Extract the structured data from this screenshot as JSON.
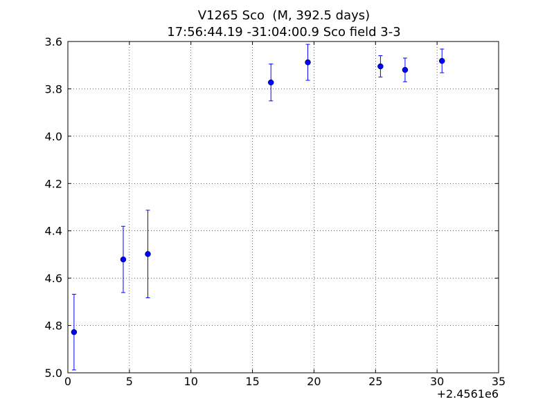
{
  "chart_data": {
    "type": "scatter",
    "title": "V1265 Sco  (M, 392.5 days)",
    "subtitle": "17:56:44.19 -31:04:00.9 Sco field 3-3",
    "x_offset_label": "+2.4561e6",
    "x": [
      0.5,
      4.5,
      6.5,
      16.5,
      19.5,
      25.4,
      27.4,
      30.4
    ],
    "values": [
      4.828,
      4.521,
      4.498,
      3.773,
      3.688,
      3.705,
      3.72,
      3.682
    ],
    "errors": [
      0.16,
      0.14,
      0.185,
      0.078,
      0.076,
      0.045,
      0.05,
      0.05
    ],
    "color": "#0000ff",
    "xlim": [
      0,
      35
    ],
    "xticks": [
      0,
      5,
      10,
      15,
      20,
      25,
      30,
      35
    ],
    "ylim": [
      5.0,
      3.6
    ],
    "yticks": [
      3.6,
      3.8,
      {
        "value": 4,
        "label": "4.0"
      },
      4.2,
      4.4,
      4.6,
      4.8,
      {
        "value": 5,
        "label": "5.0"
      }
    ],
    "grid": true
  }
}
